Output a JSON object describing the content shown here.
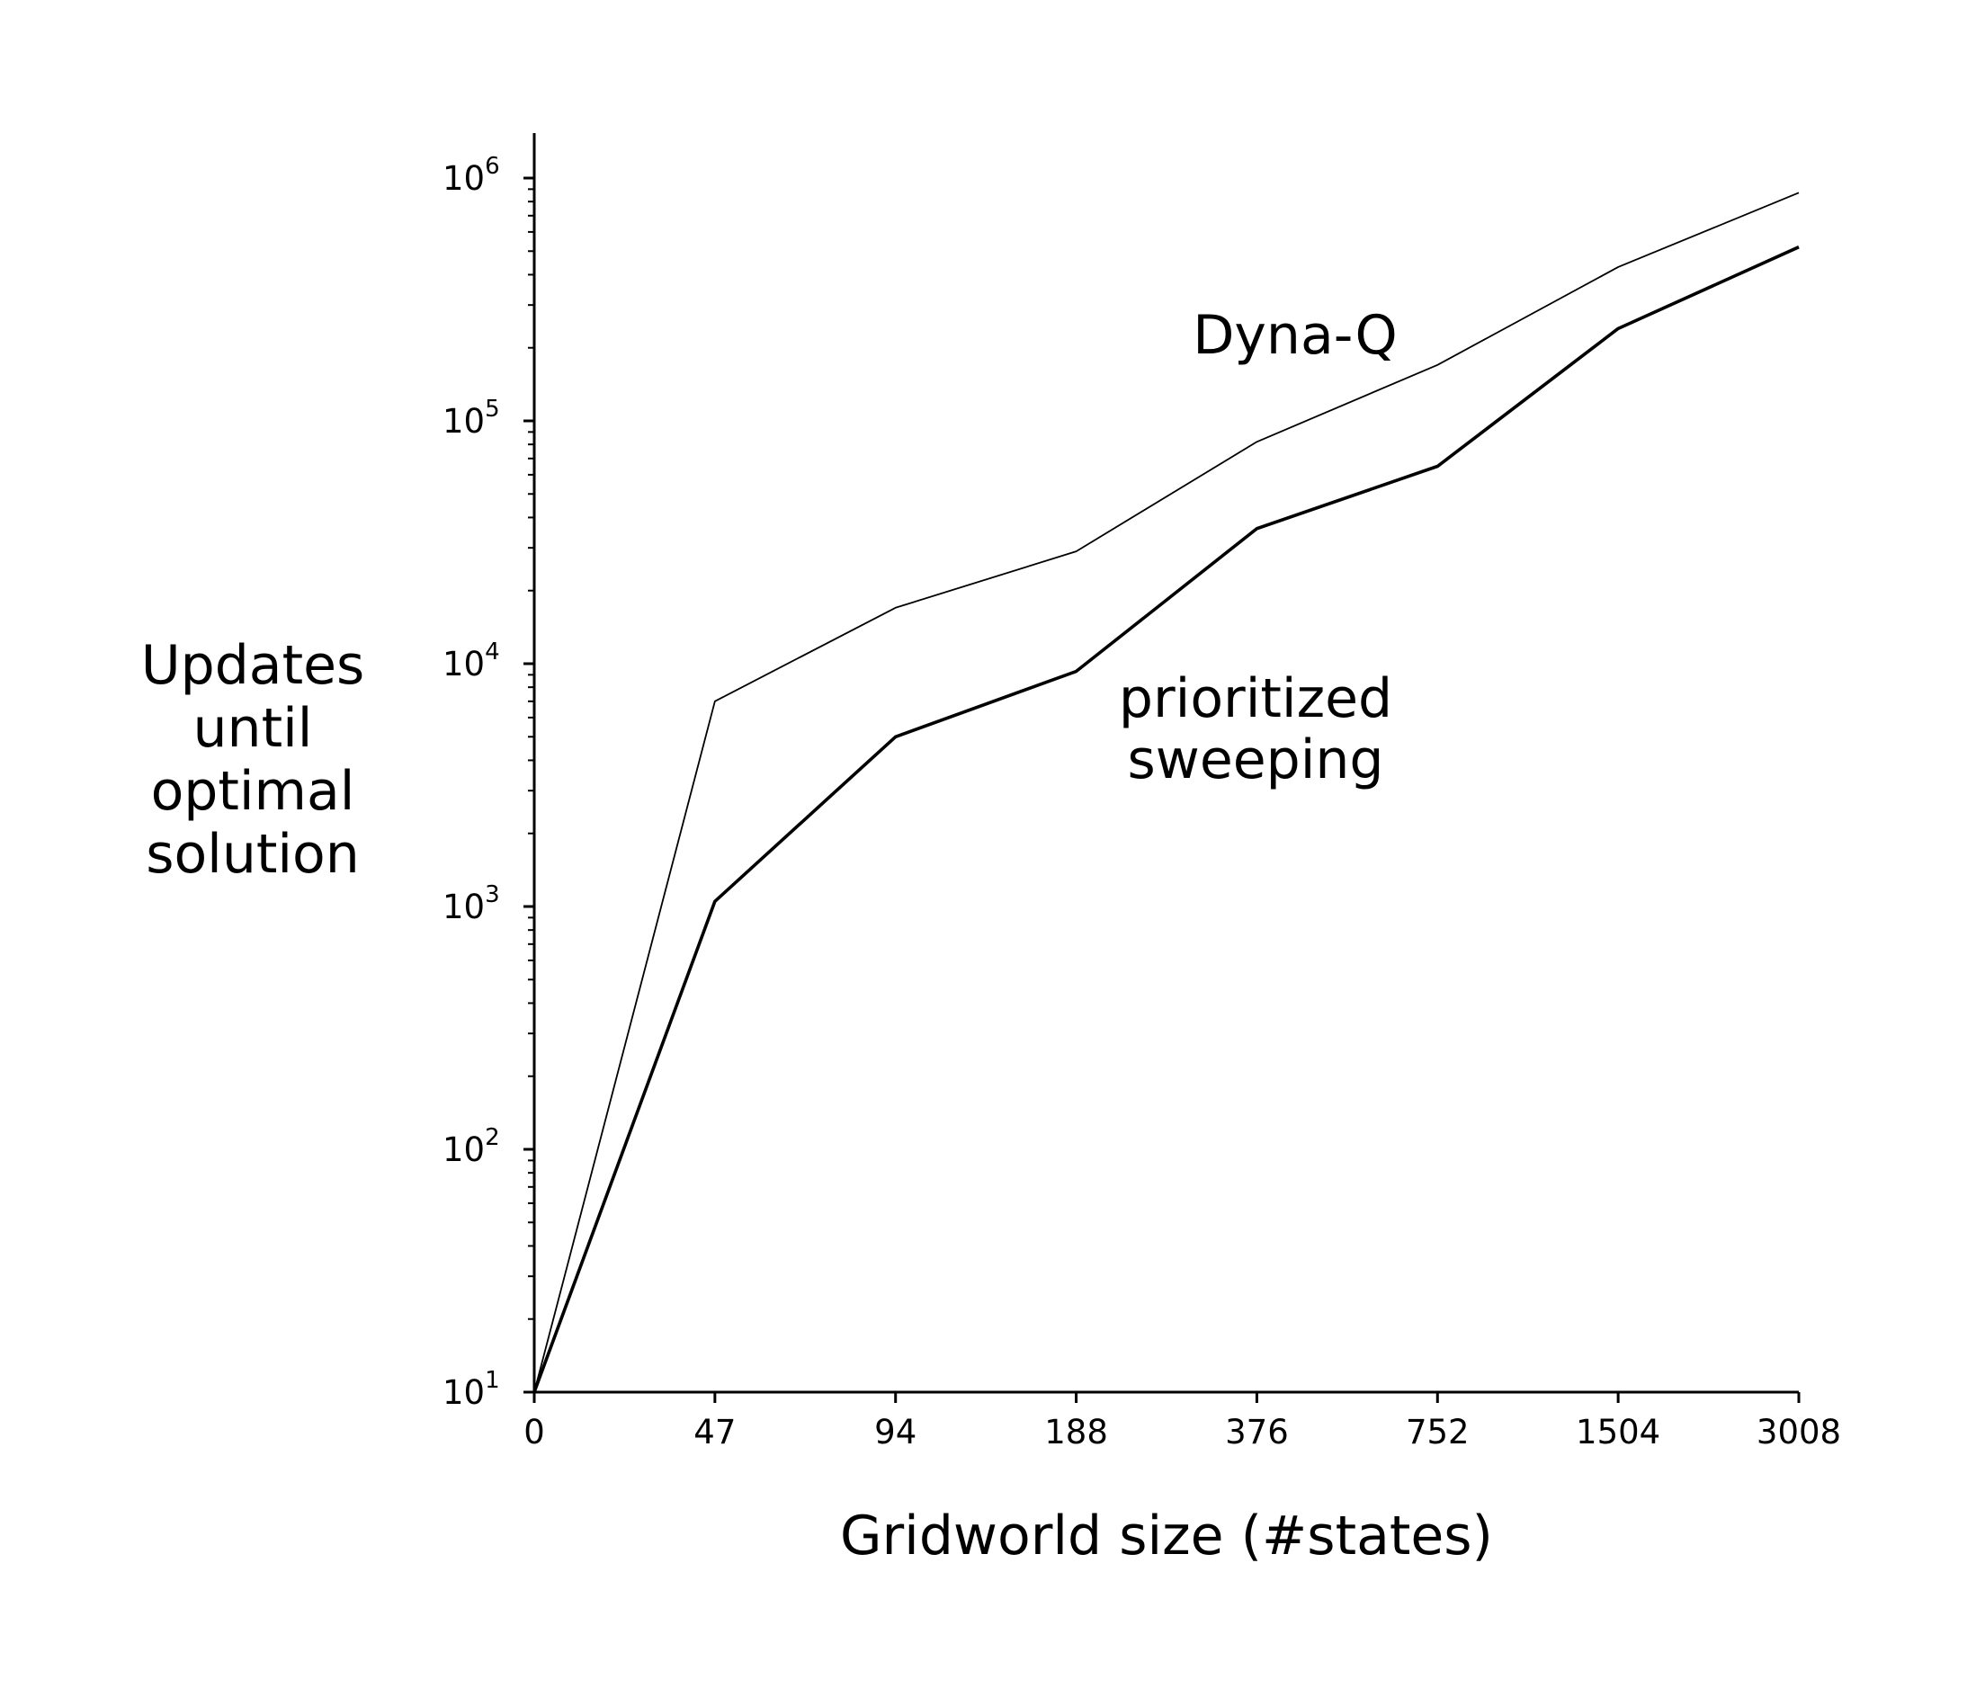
{
  "chart_data": {
    "type": "line",
    "xlabel": "Gridworld size (#states)",
    "ylabel_lines": [
      "Updates",
      "until",
      "optimal",
      "solution"
    ],
    "categories": [
      "0",
      "47",
      "94",
      "188",
      "376",
      "752",
      "1504",
      "3008"
    ],
    "y_scale": "log",
    "ylim": [
      10,
      1500000
    ],
    "y_ticks": [
      {
        "value": 10,
        "base": "10",
        "exp": "1"
      },
      {
        "value": 100,
        "base": "10",
        "exp": "2"
      },
      {
        "value": 1000,
        "base": "10",
        "exp": "3"
      },
      {
        "value": 10000,
        "base": "10",
        "exp": "4"
      },
      {
        "value": 100000,
        "base": "10",
        "exp": "5"
      },
      {
        "value": 1000000,
        "base": "10",
        "exp": "6"
      }
    ],
    "series": [
      {
        "name": "Dyna-Q",
        "values": [
          10,
          7000,
          17000,
          29000,
          82000,
          170000,
          430000,
          870000
        ],
        "color": "#000000",
        "weight": "thin"
      },
      {
        "name": "prioritized sweeping",
        "label_lines": [
          "prioritized",
          "sweeping"
        ],
        "values": [
          10,
          1050,
          5000,
          9300,
          36000,
          65000,
          240000,
          520000
        ],
        "color": "#000000",
        "weight": "thick"
      }
    ],
    "grid": false,
    "legend": "none (inline labels)"
  }
}
